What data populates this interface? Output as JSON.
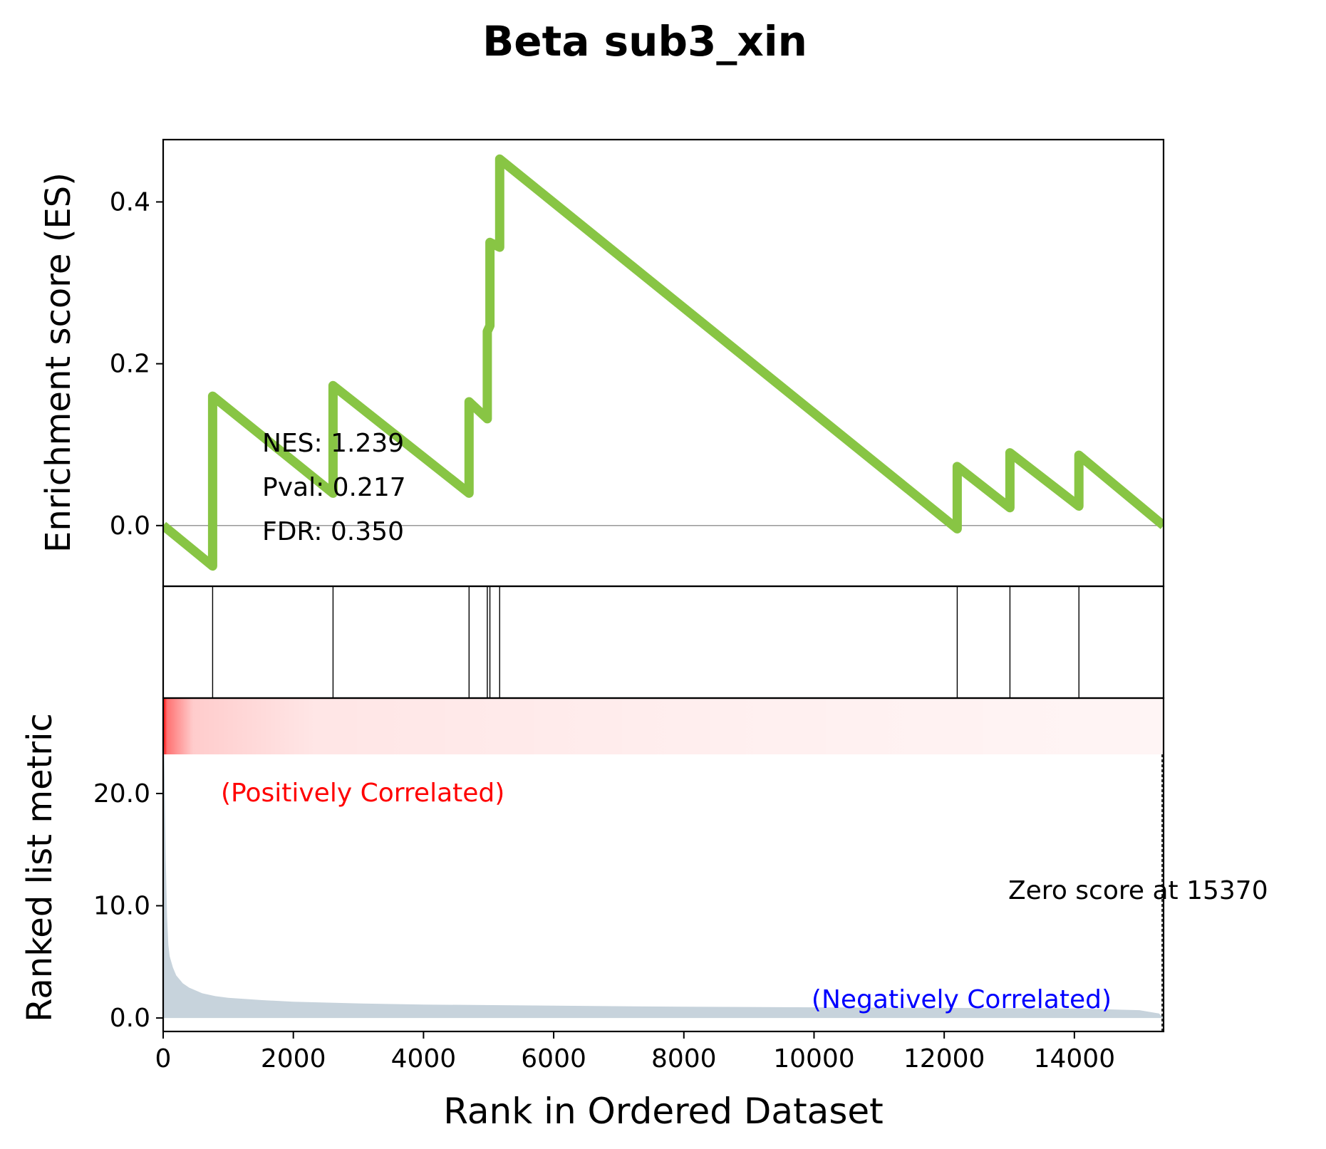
{
  "chart_data": {
    "type": "line",
    "title": "Beta sub3_xin",
    "xlabel": "Rank in Ordered Dataset",
    "ylabel_es": "Enrichment score (ES)",
    "ylabel_metric": "Ranked list metric",
    "xlim": [
      0,
      15370
    ],
    "x_ticks": [
      0,
      2000,
      4000,
      6000,
      8000,
      10000,
      12000,
      14000
    ],
    "x_tick_labels": [
      "0",
      "2000",
      "4000",
      "6000",
      "8000",
      "10000",
      "12000",
      "14000"
    ],
    "es_ylim": [
      -0.075,
      0.477
    ],
    "es_ticks": [
      0.0,
      0.2,
      0.4
    ],
    "es_tick_labels": [
      "0.0",
      "0.2",
      "0.4"
    ],
    "es_series": {
      "color": "#88c544",
      "x": [
        0,
        760,
        760,
        2610,
        2610,
        4700,
        4700,
        4980,
        4980,
        5020,
        5020,
        5170,
        5170,
        12200,
        12200,
        13010,
        13010,
        14070,
        14070,
        15370
      ],
      "y": [
        0.0,
        -0.05,
        0.16,
        0.04,
        0.173,
        0.04,
        0.153,
        0.132,
        0.24,
        0.247,
        0.35,
        0.344,
        0.453,
        -0.004,
        0.073,
        0.022,
        0.09,
        0.024,
        0.087,
        0.0
      ]
    },
    "hit_positions": [
      760,
      2610,
      4700,
      4980,
      5020,
      5170,
      12200,
      13010,
      14070
    ],
    "stats": {
      "nes": "NES: 1.239",
      "pval": "Pval: 0.217",
      "fdr": "FDR: 0.350"
    },
    "metric_ylim": [
      -1.2,
      28.5
    ],
    "metric_ticks": [
      0.0,
      10.0,
      20.0
    ],
    "metric_tick_labels": [
      "0.0",
      "10.0",
      "20.0"
    ],
    "metric_series": {
      "color": "#c7d3dc",
      "x": [
        0,
        20,
        40,
        60,
        80,
        100,
        150,
        200,
        300,
        400,
        600,
        800,
        1000,
        1500,
        2000,
        3000,
        4000,
        6000,
        8000,
        10000,
        12000,
        14000,
        15000,
        15300,
        15370
      ],
      "y": [
        28.0,
        22.0,
        14.0,
        9.0,
        6.5,
        5.5,
        4.5,
        3.8,
        3.1,
        2.7,
        2.2,
        1.95,
        1.8,
        1.6,
        1.45,
        1.3,
        1.2,
        1.1,
        1.0,
        0.95,
        0.9,
        0.85,
        0.7,
        0.4,
        0.0
      ]
    },
    "annotations": {
      "positive": "(Positively Correlated)",
      "negative": "(Negatively Correlated)",
      "zero_score": "Zero score at 15370",
      "positive_color": "#ff0000",
      "negative_color": "#0000ff"
    },
    "gradient_color": "#ff0000"
  }
}
